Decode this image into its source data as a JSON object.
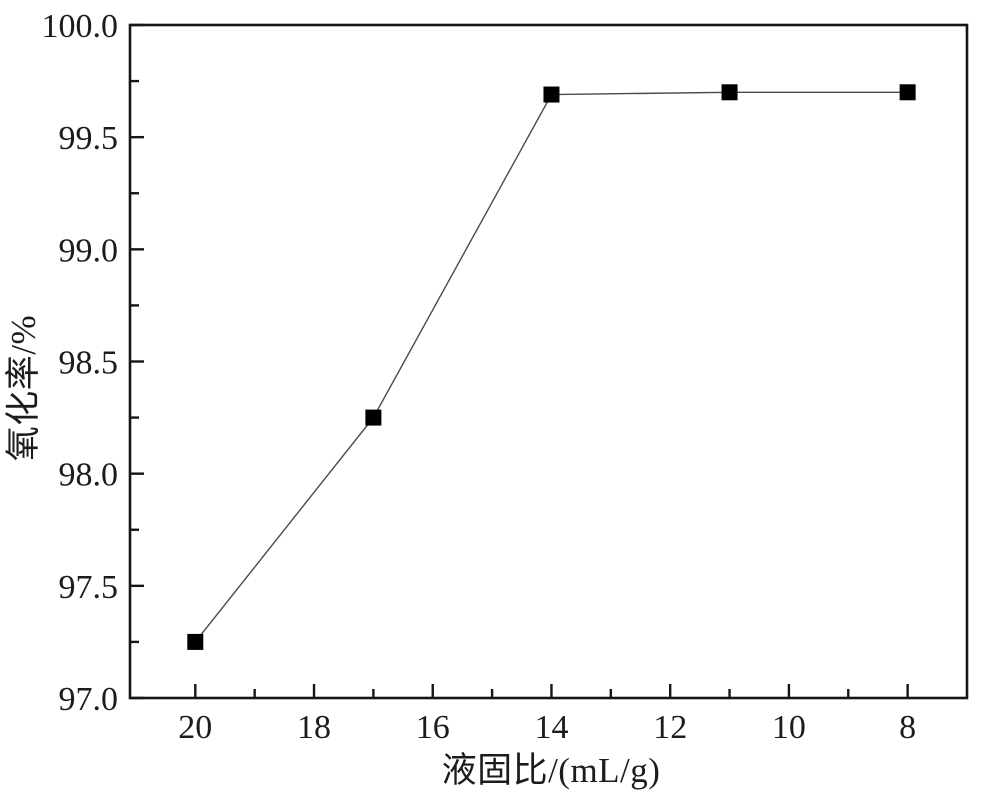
{
  "figure": {
    "background": "#ffffff"
  },
  "chart_data": {
    "type": "line",
    "title": "",
    "xlabel": "液固比/(mL/g)",
    "ylabel": "氧化率/%",
    "grid": false,
    "legend": "none",
    "x_axis": {
      "reversed": true,
      "lim": [
        21.1,
        7.0
      ],
      "major_ticks": [
        20,
        18,
        16,
        14,
        12,
        10,
        8
      ],
      "major_tick_labels": [
        "20",
        "18",
        "16",
        "14",
        "12",
        "10",
        "8"
      ],
      "minor_ticks": [
        19,
        17,
        15,
        13,
        11,
        9
      ]
    },
    "y_axis": {
      "lim": [
        97.0,
        100.0
      ],
      "major_ticks": [
        97.0,
        97.5,
        98.0,
        98.5,
        99.0,
        99.5,
        100.0
      ],
      "major_tick_labels": [
        "97.0",
        "97.5",
        "98.0",
        "98.5",
        "99.0",
        "99.5",
        "100.0"
      ],
      "minor_ticks": [
        97.25,
        97.75,
        98.25,
        98.75,
        99.25,
        99.75
      ]
    },
    "series": [
      {
        "name": "氧化率",
        "x": [
          20,
          17,
          14,
          11,
          8
        ],
        "y": [
          97.25,
          98.25,
          99.69,
          99.7,
          99.7
        ],
        "marker": "filled-square",
        "marker_size": 16,
        "marker_color": "#000000",
        "line_color": "#4a4a4a",
        "line_width": 1.4
      }
    ],
    "colors": {
      "frame": "#161616",
      "tick": "#161616",
      "tick_label": "#1c1c1c",
      "axis_title": "#1c1c1c",
      "background": "#ffffff"
    }
  }
}
